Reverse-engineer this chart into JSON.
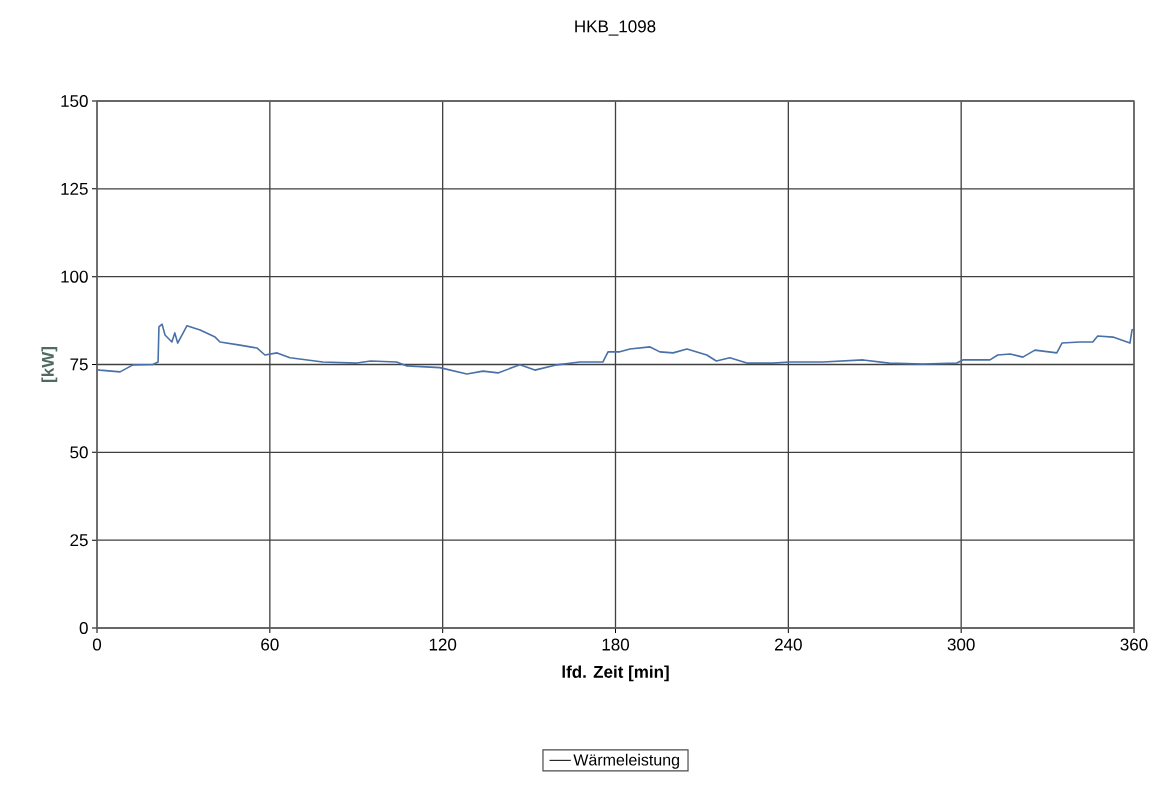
{
  "chart_data": {
    "type": "line",
    "title": "HKB_1098",
    "xlabel": "lfd. Zeit [min]",
    "ylabel": "[kW]",
    "xlim": [
      0,
      360
    ],
    "ylim": [
      0,
      150
    ],
    "xticks": [
      0,
      60,
      120,
      180,
      240,
      300,
      360
    ],
    "yticks": [
      0,
      25,
      50,
      75,
      100,
      125,
      150
    ],
    "grid": true,
    "legend": "bottom",
    "marker": "none",
    "line_style": "solid",
    "x": [
      0,
      1,
      8,
      12.5,
      19.4,
      21.2,
      21.5,
      22.6,
      23.6,
      26,
      27,
      28,
      31.2,
      35.8,
      41,
      42.7,
      49.6,
      55.5,
      58.3,
      62.5,
      67,
      78.4,
      90.2,
      95,
      104,
      107.6,
      119,
      128.4,
      134,
      139.2,
      146.8,
      152,
      159.7,
      167.6,
      175.6,
      177.4,
      181.5,
      185,
      192,
      195.4,
      200,
      204.8,
      211.7,
      215,
      219.7,
      225.6,
      234.6,
      240.5,
      252,
      266,
      275,
      286.7,
      298.5,
      300.6,
      310,
      312.7,
      317,
      321.4,
      325.6,
      333.2,
      335,
      341.2,
      345.7,
      347.4,
      352.7,
      358.6,
      359.3,
      360
    ],
    "series": [
      {
        "name": "Wärmeleistung",
        "color": "#4a70a8",
        "values": [
          73.5,
          73.4,
          72.9,
          74.9,
          75,
          75.7,
          85.7,
          86.5,
          83.4,
          81.4,
          84,
          81.1,
          86,
          84.8,
          82.8,
          81.4,
          80.5,
          79.7,
          77.7,
          78.3,
          76.9,
          75.7,
          75.4,
          76,
          75.7,
          74.6,
          74.1,
          72.3,
          73.1,
          72.6,
          74.9,
          73.4,
          74.9,
          75.7,
          75.7,
          78.6,
          78.6,
          79.4,
          80,
          78.6,
          78.3,
          79.4,
          77.7,
          76,
          76.9,
          75.4,
          75.4,
          75.7,
          75.7,
          76.3,
          75.4,
          75.1,
          75.4,
          76.3,
          76.3,
          77.7,
          78,
          77.1,
          79.1,
          78.3,
          81.1,
          81.4,
          81.4,
          83.1,
          82.8,
          81.1,
          84.8,
          85
        ]
      }
    ]
  }
}
